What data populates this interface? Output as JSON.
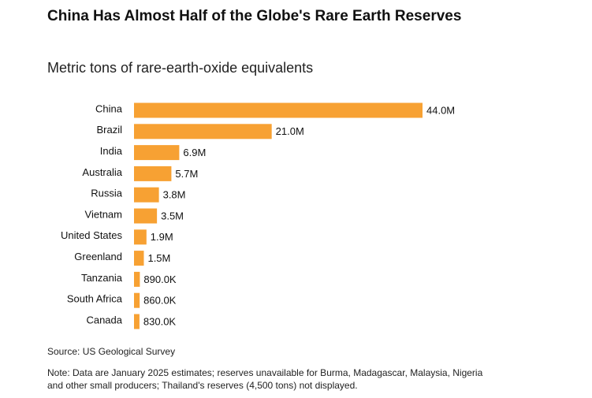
{
  "header": {
    "title": "China Has Almost Half of the Globe's Rare Earth Reserves",
    "subtitle": "Metric tons of rare-earth-oxide equivalents"
  },
  "footer": {
    "source": "Source: US Geological Survey",
    "note": "Note: Data are January 2025 estimates; reserves unavailable for Burma, Madagascar, Malaysia, Nigeria and other small producers; Thailand's reserves (4,500 tons) not displayed."
  },
  "colors": {
    "bar": "#F7A133"
  },
  "chart_data": {
    "type": "bar",
    "orientation": "horizontal",
    "title": "China Has Almost Half of the Globe's Rare Earth Reserves",
    "subtitle": "Metric tons of rare-earth-oxide equivalents",
    "categories": [
      "China",
      "Brazil",
      "India",
      "Australia",
      "Russia",
      "Vietnam",
      "United States",
      "Greenland",
      "Tanzania",
      "South Africa",
      "Canada"
    ],
    "values": [
      44000000,
      21000000,
      6900000,
      5700000,
      3800000,
      3500000,
      1900000,
      1500000,
      890000,
      860000,
      830000
    ],
    "labels": [
      "44.0M",
      "21.0M",
      "6.9M",
      "5.7M",
      "3.8M",
      "3.5M",
      "1.9M",
      "1.5M",
      "890.0K",
      "860.0K",
      "830.0K"
    ],
    "grid": false,
    "legend": "none"
  }
}
